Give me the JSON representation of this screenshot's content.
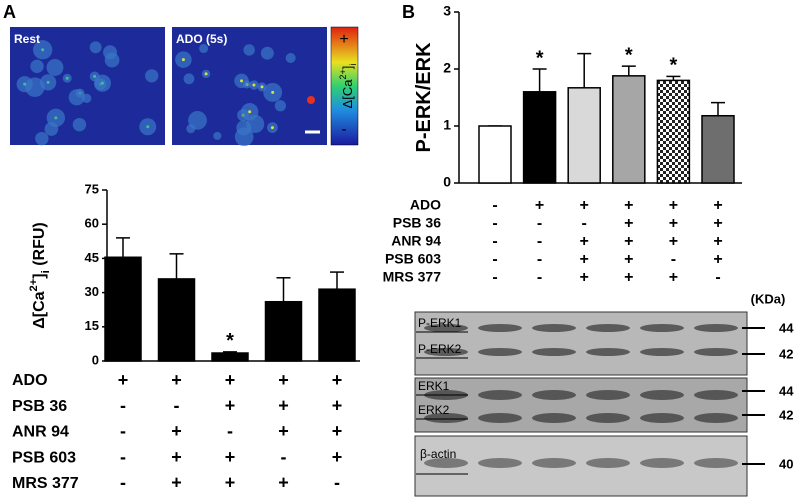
{
  "panel_labels": [
    "A",
    "B"
  ],
  "images": {
    "rest_label": "Rest",
    "ado_label": "ADO (5s)",
    "colorbar_label_parts": [
      "Δ[Ca",
      "2+",
      "]",
      "i"
    ],
    "colorbar_plus": "+",
    "colorbar_minus": "-"
  },
  "chart_data": [
    {
      "type": "bar",
      "ylabel_parts": [
        "Δ[Ca",
        "2+",
        "]",
        "i",
        " (RFU)"
      ],
      "categories": [
        null,
        null,
        null,
        null,
        null
      ],
      "series": [
        {
          "colors": [
            "#000000",
            "#000000",
            "#000000",
            "#000000",
            "#000000"
          ],
          "values": [
            45.5,
            36,
            3.5,
            26,
            31.5
          ],
          "errors": [
            8.5,
            11,
            0.5,
            10.5,
            7.5
          ]
        }
      ],
      "significant": [
        false,
        false,
        true,
        false,
        false
      ],
      "marker": "*",
      "ylim": [
        0,
        75
      ],
      "yticks": [
        0,
        15,
        30,
        45,
        60,
        75
      ],
      "treatments": {
        "rows": [
          {
            "name": "ADO",
            "marks": [
              "+",
              "+",
              "+",
              "+",
              "+"
            ]
          },
          {
            "name": "PSB 36",
            "marks": [
              "-",
              "-",
              "+",
              "+",
              "+"
            ]
          },
          {
            "name": "ANR 94",
            "marks": [
              "-",
              "+",
              "-",
              "+",
              "+"
            ]
          },
          {
            "name": "PSB 603",
            "marks": [
              "-",
              "+",
              "+",
              "-",
              "+"
            ]
          },
          {
            "name": "MRS 377",
            "marks": [
              "-",
              "+",
              "+",
              "+",
              "-"
            ]
          }
        ]
      }
    },
    {
      "type": "bar",
      "ylabel_parts": [
        "P-ERK/ERK"
      ],
      "categories": [
        null,
        null,
        null,
        null,
        null,
        null
      ],
      "series": [
        {
          "colors": [
            "#ffffff",
            "#000000",
            "#d9d9d9",
            "#a6a6a6",
            "checker",
            "#6e6e6e"
          ],
          "values": [
            1.0,
            1.6,
            1.67,
            1.88,
            1.8,
            1.18
          ],
          "errors": [
            0.0,
            0.4,
            0.6,
            0.17,
            0.07,
            0.23
          ]
        }
      ],
      "significant": [
        false,
        true,
        false,
        true,
        true,
        false
      ],
      "marker": "*",
      "ylim": [
        0,
        3
      ],
      "yticks": [
        0,
        1,
        2,
        3
      ],
      "treatments": {
        "rows": [
          {
            "name": "ADO",
            "marks": [
              "-",
              "+",
              "+",
              "+",
              "+",
              "+"
            ]
          },
          {
            "name": "PSB 36",
            "marks": [
              "-",
              "-",
              "-",
              "+",
              "+",
              "+"
            ]
          },
          {
            "name": "ANR 94",
            "marks": [
              "-",
              "-",
              "+",
              "+",
              "+",
              "+"
            ]
          },
          {
            "name": "PSB 603",
            "marks": [
              "-",
              "-",
              "+",
              "+",
              "-",
              "+"
            ]
          },
          {
            "name": "MRS 377",
            "marks": [
              "-",
              "-",
              "+",
              "+",
              "+",
              "-"
            ]
          }
        ]
      }
    }
  ],
  "blot": {
    "unit": "(KDa)",
    "bands": [
      {
        "name": "P-ERK1",
        "kda": 44
      },
      {
        "name": "P-ERK2",
        "kda": 42
      },
      {
        "name": "ERK1",
        "kda": 44
      },
      {
        "name": "ERK2",
        "kda": 42
      },
      {
        "name": "β-actin",
        "kda": 40
      }
    ]
  }
}
